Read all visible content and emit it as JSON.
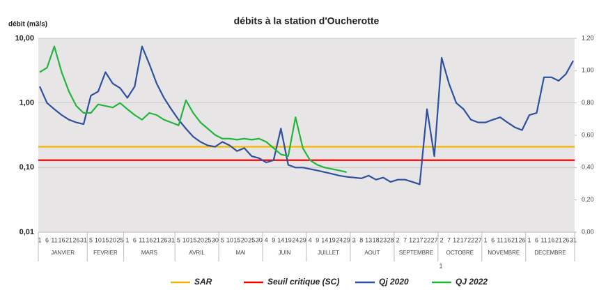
{
  "chart_data": {
    "type": "line",
    "title": "débits à la station d'Oucherotte",
    "ylabel": "débit (m3/s)",
    "log_scale": true,
    "grid": true,
    "annotation": "1",
    "ylim": [
      0.01,
      10
    ],
    "yticks": [
      {
        "value": 0.01,
        "label": "0,01"
      },
      {
        "value": 0.1,
        "label": "0,10"
      },
      {
        "value": 1,
        "label": "1,00"
      },
      {
        "value": 10,
        "label": "10,00"
      }
    ],
    "y2lim": [
      0,
      1.2
    ],
    "y2ticks": [
      {
        "value": 0,
        "label": "0,00"
      },
      {
        "value": 0.2,
        "label": "0,20"
      },
      {
        "value": 0.4,
        "label": "0,40"
      },
      {
        "value": 0.6,
        "label": "0,60"
      },
      {
        "value": 0.8,
        "label": "0,80"
      },
      {
        "value": 1,
        "label": "1,00"
      },
      {
        "value": 1.2,
        "label": "1,20"
      }
    ],
    "months": [
      {
        "name": "JANVIER",
        "days": [
          1,
          6,
          11,
          16,
          21,
          26,
          31
        ]
      },
      {
        "name": "FEVRIER",
        "days": [
          5,
          10,
          15,
          20,
          25
        ]
      },
      {
        "name": "MARS",
        "days": [
          1,
          6,
          11,
          16,
          21,
          26,
          31
        ]
      },
      {
        "name": "AVRIL",
        "days": [
          5,
          10,
          15,
          20,
          25,
          30
        ]
      },
      {
        "name": "MAI",
        "days": [
          5,
          10,
          15,
          20,
          25,
          30
        ]
      },
      {
        "name": "JUIN",
        "days": [
          4,
          9,
          14,
          19,
          24,
          29
        ]
      },
      {
        "name": "JUILLET",
        "days": [
          4,
          9,
          14,
          19,
          24,
          29
        ]
      },
      {
        "name": "AOUT",
        "days": [
          3,
          8,
          13,
          18,
          23,
          28
        ]
      },
      {
        "name": "SEPTEMBRE",
        "days": [
          2,
          7,
          12,
          17,
          22,
          27
        ]
      },
      {
        "name": "OCTOBRE",
        "days": [
          2,
          7,
          12,
          17,
          22,
          27
        ]
      },
      {
        "name": "NOVEMBRE",
        "days": [
          1,
          6,
          11,
          16,
          21,
          26
        ]
      },
      {
        "name": "DECEMBRE",
        "days": [
          1,
          6,
          11,
          16,
          21,
          26,
          31
        ]
      }
    ],
    "series": [
      {
        "name": "SAR",
        "color": "#f5b400",
        "value": 0.21
      },
      {
        "name": "Seuil critique (SC)",
        "color": "#ff0000",
        "value": 0.13
      },
      {
        "name": "Qj 2020",
        "color": "#2f4f9f",
        "values": [
          1.8,
          1.0,
          0.8,
          0.65,
          0.55,
          0.5,
          0.47,
          1.3,
          1.5,
          3.0,
          2.0,
          1.7,
          1.2,
          1.8,
          7.5,
          4.0,
          2.0,
          1.2,
          0.8,
          0.55,
          0.4,
          0.3,
          0.25,
          0.22,
          0.21,
          0.25,
          0.22,
          0.18,
          0.2,
          0.15,
          0.14,
          0.12,
          0.13,
          0.4,
          0.11,
          0.1,
          0.1,
          0.095,
          0.09,
          0.085,
          0.08,
          0.075,
          0.072,
          0.07,
          0.068,
          0.075,
          0.065,
          0.07,
          0.06,
          0.065,
          0.065,
          0.06,
          0.055,
          0.8,
          0.15,
          5.0,
          2.0,
          1.0,
          0.8,
          0.55,
          0.5,
          0.5,
          0.55,
          0.6,
          0.5,
          0.42,
          0.38,
          0.65,
          0.7,
          2.5,
          2.5,
          2.2,
          2.8,
          4.5
        ]
      },
      {
        "name": "QJ 2022",
        "color": "#22b53c",
        "values": [
          3.0,
          3.5,
          7.5,
          3.0,
          1.5,
          0.9,
          0.7,
          0.7,
          0.95,
          0.9,
          0.85,
          1.0,
          0.8,
          0.65,
          0.55,
          0.7,
          0.65,
          0.55,
          0.5,
          0.45,
          1.1,
          0.7,
          0.5,
          0.4,
          0.32,
          0.28,
          0.28,
          0.27,
          0.28,
          0.27,
          0.28,
          0.25,
          0.2,
          0.16,
          0.15,
          0.6,
          0.2,
          0.13,
          0.11,
          0.1,
          0.095,
          0.09,
          0.085,
          null,
          null,
          null,
          null,
          null,
          null,
          null,
          null,
          null,
          null,
          null,
          null,
          null,
          null,
          null,
          null,
          null,
          null,
          null,
          null,
          null,
          null,
          null,
          null,
          null,
          null,
          null,
          null,
          null,
          null,
          null
        ]
      }
    ]
  }
}
